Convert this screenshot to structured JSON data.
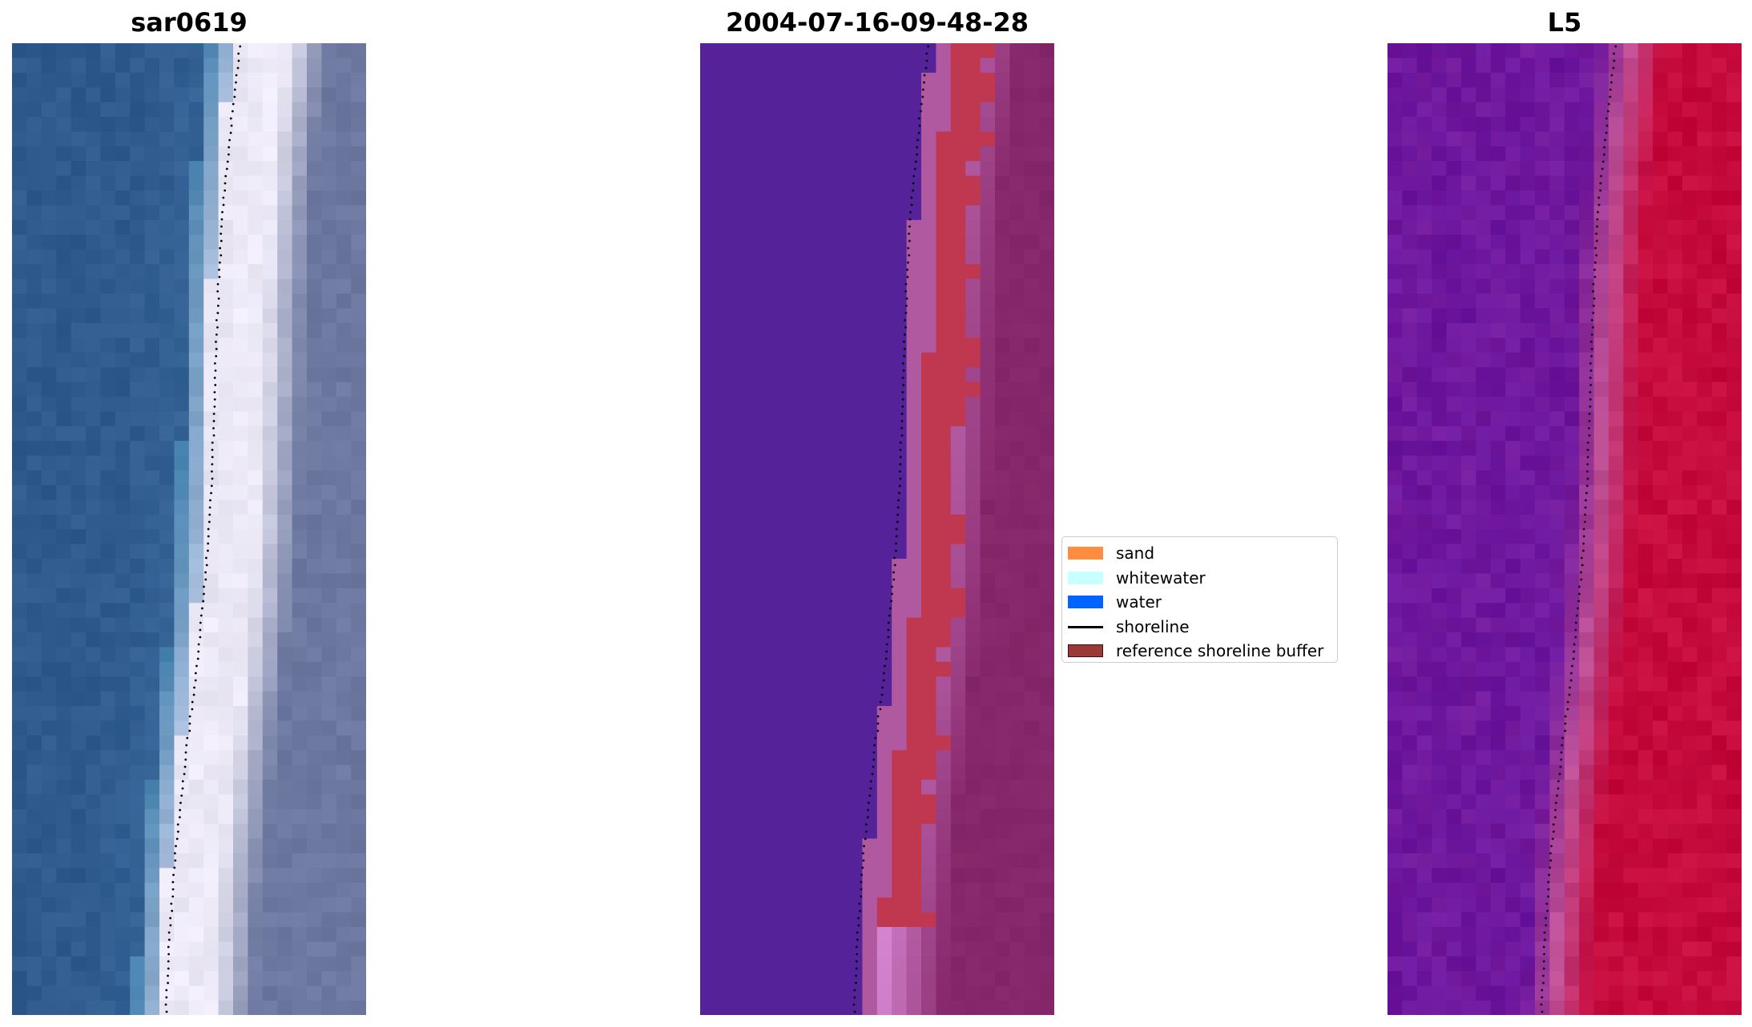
{
  "panels": [
    {
      "title": "sar0619",
      "view": "rgb"
    },
    {
      "title": "2004-07-16-09-48-28",
      "view": "classified"
    },
    {
      "title": "L5",
      "view": "index"
    }
  ],
  "legend": {
    "items": [
      {
        "label": "sand",
        "color": "#ff8c3f",
        "kind": "patch"
      },
      {
        "label": "whitewater",
        "color": "#c8ffff",
        "kind": "patch"
      },
      {
        "label": "water",
        "color": "#0064ff",
        "kind": "patch"
      },
      {
        "label": "shoreline",
        "color": "#000000",
        "kind": "line"
      },
      {
        "label": "reference shoreline buffer",
        "color": "#9b3838",
        "kind": "patch"
      }
    ]
  },
  "colors": {
    "rgb_water": "#2f5a8e",
    "rgb_surf": "#e8e6f4",
    "rgb_land": "#6c789f",
    "class_water": "#55229a",
    "class_buffer": "#c0384f",
    "class_land": "#8a2a6e",
    "index_water": "#72199c",
    "index_land": "#c5083a"
  }
}
